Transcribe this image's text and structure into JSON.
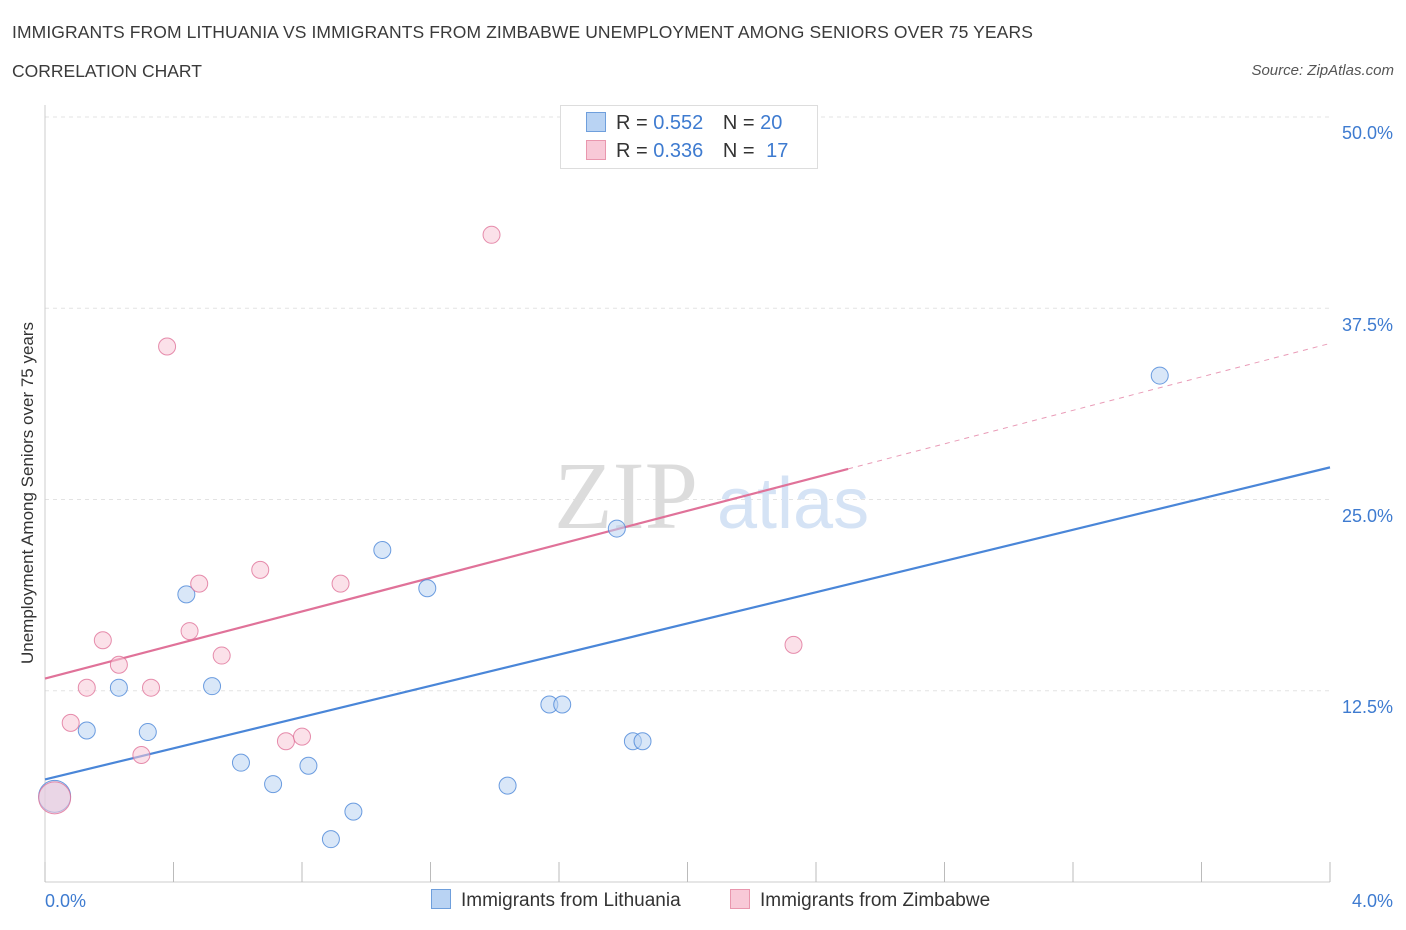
{
  "header": {
    "title": "IMMIGRANTS FROM LITHUANIA VS IMMIGRANTS FROM ZIMBABWE UNEMPLOYMENT AMONG SENIORS OVER 75 YEARS",
    "subtitle": "CORRELATION CHART",
    "source": "Source: ZipAtlas.com"
  },
  "legend_stats": [
    {
      "series": "Immigrants from Lithuania",
      "r_label": "R =",
      "r_value": "0.552",
      "n_label": "N =",
      "n_value": "20",
      "color": "#4a86d8"
    },
    {
      "series": "Immigrants from Zimbabwe",
      "r_label": "R =",
      "r_value": "0.336",
      "n_label": "N =",
      "n_value": "17",
      "color": "#e07299"
    }
  ],
  "bottom_legend": {
    "lithuania": "Immigrants from Lithuania",
    "zimbabwe": "Immigrants from Zimbabwe"
  },
  "watermark": {
    "zip": "ZIP",
    "atlas": "atlas"
  },
  "chart_data": {
    "type": "scatter",
    "title": "IMMIGRANTS FROM LITHUANIA VS IMMIGRANTS FROM ZIMBABWE UNEMPLOYMENT AMONG SENIORS OVER 75 YEARS",
    "xlabel": "",
    "ylabel": "Unemployment Among Seniors over 75 years",
    "xlim": [
      0,
      4.0
    ],
    "ylim": [
      0,
      50
    ],
    "x_tick_labels": [
      "0.0%",
      "4.0%"
    ],
    "y_ticks": [
      12.5,
      25.0,
      37.5,
      50.0
    ],
    "y_tick_labels": [
      "12.5%",
      "25.0%",
      "37.5%",
      "50.0%"
    ],
    "grid": true,
    "series": [
      {
        "name": "Immigrants from Lithuania",
        "color": "#4a86d8",
        "fill": "#b9d3f3",
        "points": [
          {
            "x": 0.03,
            "y": 5.6,
            "big": true
          },
          {
            "x": 0.13,
            "y": 9.9
          },
          {
            "x": 0.23,
            "y": 12.7
          },
          {
            "x": 0.32,
            "y": 9.8
          },
          {
            "x": 0.44,
            "y": 18.8
          },
          {
            "x": 0.52,
            "y": 12.8
          },
          {
            "x": 0.61,
            "y": 7.8
          },
          {
            "x": 0.71,
            "y": 6.4
          },
          {
            "x": 0.82,
            "y": 7.6
          },
          {
            "x": 0.89,
            "y": 2.8
          },
          {
            "x": 0.96,
            "y": 4.6
          },
          {
            "x": 1.05,
            "y": 21.7
          },
          {
            "x": 1.19,
            "y": 19.2
          },
          {
            "x": 1.44,
            "y": 6.3
          },
          {
            "x": 1.57,
            "y": 11.6
          },
          {
            "x": 1.61,
            "y": 11.6
          },
          {
            "x": 1.78,
            "y": 23.1
          },
          {
            "x": 1.83,
            "y": 9.2
          },
          {
            "x": 1.86,
            "y": 9.2
          },
          {
            "x": 3.47,
            "y": 33.1
          }
        ],
        "trend": {
          "x0": 0.0,
          "y0": 6.7,
          "x1": 4.0,
          "y1": 27.1
        }
      },
      {
        "name": "Immigrants from Zimbabwe",
        "color": "#e07299",
        "fill": "#f8c9d7",
        "points": [
          {
            "x": 0.03,
            "y": 5.5,
            "big": true
          },
          {
            "x": 0.08,
            "y": 10.4
          },
          {
            "x": 0.13,
            "y": 12.7
          },
          {
            "x": 0.18,
            "y": 15.8
          },
          {
            "x": 0.23,
            "y": 14.2
          },
          {
            "x": 0.3,
            "y": 8.3
          },
          {
            "x": 0.33,
            "y": 12.7
          },
          {
            "x": 0.38,
            "y": 35.0
          },
          {
            "x": 0.45,
            "y": 16.4
          },
          {
            "x": 0.48,
            "y": 19.5
          },
          {
            "x": 0.55,
            "y": 14.8
          },
          {
            "x": 0.67,
            "y": 20.4
          },
          {
            "x": 0.75,
            "y": 9.2
          },
          {
            "x": 0.8,
            "y": 9.5
          },
          {
            "x": 0.92,
            "y": 19.5
          },
          {
            "x": 1.39,
            "y": 42.3
          },
          {
            "x": 2.33,
            "y": 15.5
          }
        ],
        "trend": {
          "x0": 0.0,
          "y0": 13.3,
          "x1": 2.5,
          "y1": 27.0
        },
        "trend_extension": {
          "x0": 2.5,
          "y0": 27.0,
          "x1": 4.0,
          "y1": 35.2
        }
      }
    ]
  }
}
